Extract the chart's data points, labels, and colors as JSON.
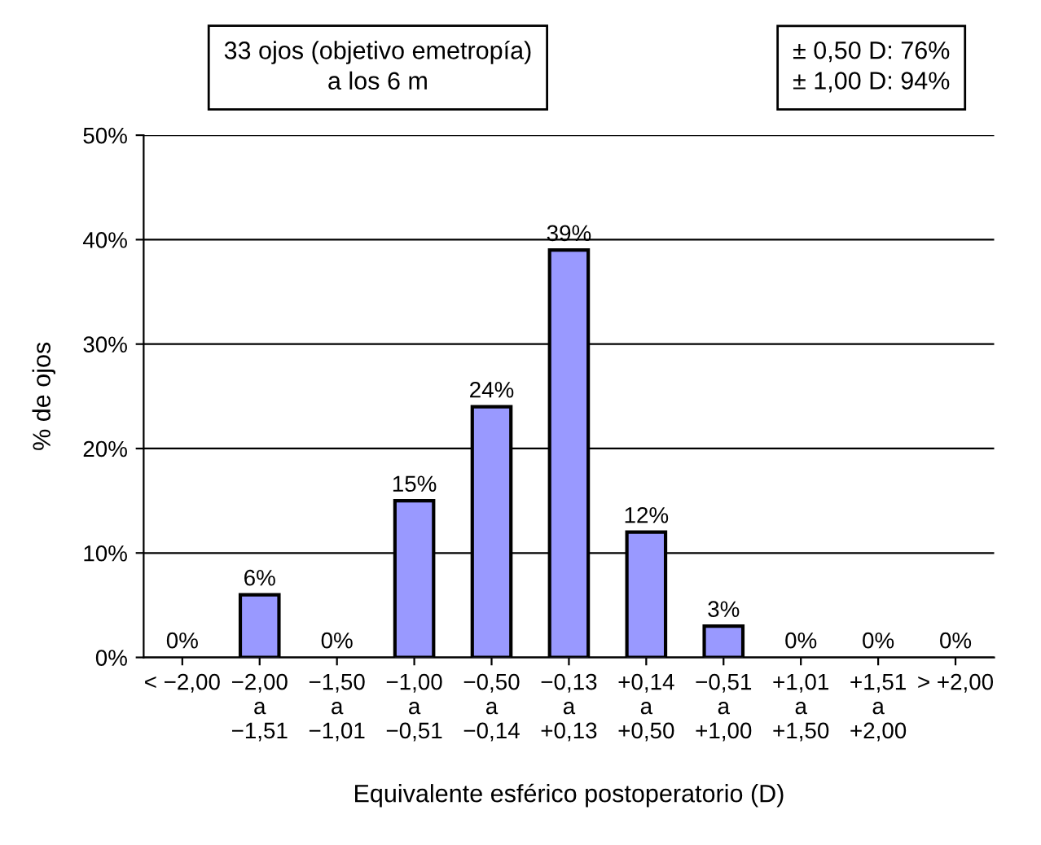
{
  "chart_data": {
    "type": "bar",
    "categories": [
      "< −2,00",
      "−2,00\na\n−1,51",
      "−1,50\na\n−1,01",
      "−1,00\na\n−0,51",
      "−0,50\na\n−0,14",
      "−0,13\na\n+0,13",
      "+0,14\na\n+0,50",
      "−0,51\na\n+1,00",
      "+1,01\na\n+1,50",
      "+1,51\na\n+2,00",
      "> +2,00"
    ],
    "values": [
      0,
      6,
      0,
      15,
      24,
      39,
      12,
      3,
      0,
      0,
      0
    ],
    "value_labels": [
      "0%",
      "6%",
      "0%",
      "15%",
      "24%",
      "39%",
      "12%",
      "3%",
      "0%",
      "0%",
      "0%"
    ],
    "color": "#9999ff",
    "ylim": [
      0,
      50
    ],
    "yticks": [
      {
        "value": 0,
        "label": "0%"
      },
      {
        "value": 10,
        "label": "10%"
      },
      {
        "value": 20,
        "label": "20%"
      },
      {
        "value": 30,
        "label": "30%"
      },
      {
        "value": 40,
        "label": "40%"
      },
      {
        "value": 50,
        "label": "50%"
      }
    ],
    "ylabel": "% de ojos",
    "xlabel": "Equivalente esférico postoperatorio (D)",
    "grid": "y",
    "annotations": [
      "33 ojos (objetivo emetropía)\na los 6 m",
      "± 0,50 D: 76%\n± 1,00 D: 94%"
    ]
  }
}
